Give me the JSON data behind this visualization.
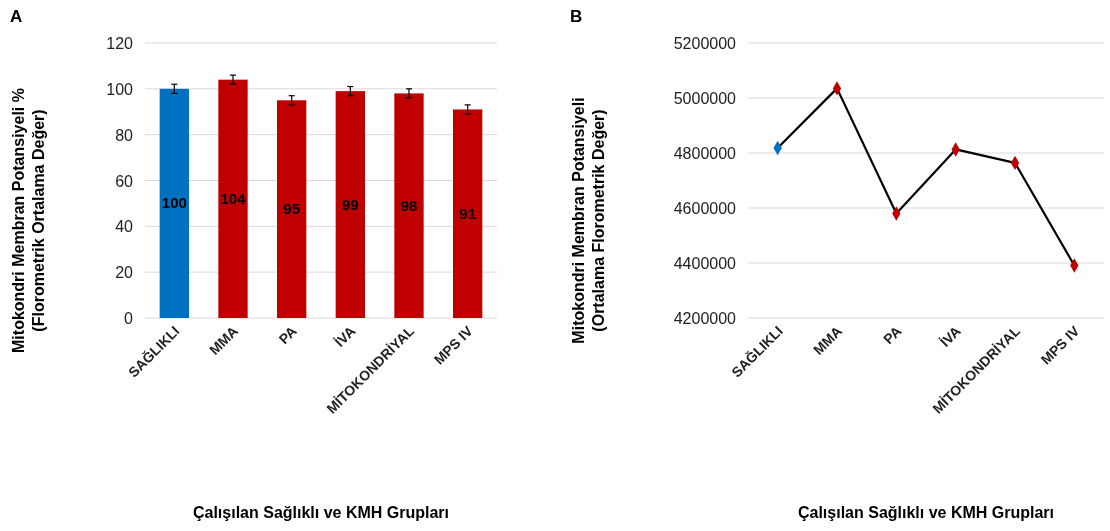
{
  "chart_data": [
    {
      "type": "bar",
      "title": "A",
      "xlabel": "Çalışılan Sağlıklı ve KMH Grupları",
      "ylabel": "Mitokondri Membran Potansiyeli %",
      "y2label": "(Florometrik Ortalama Değer)",
      "categories": [
        "SAĞLIKLI",
        "MMA",
        "PA",
        "İVA",
        "MİTOKONDRİYAL",
        "MPS IV"
      ],
      "values": [
        100,
        104,
        95,
        99,
        98,
        91
      ],
      "colors": [
        "#0070c0",
        "#c00000",
        "#c00000",
        "#c00000",
        "#c00000",
        "#c00000"
      ],
      "errors": [
        2,
        2,
        2,
        2,
        2,
        2
      ],
      "data_labels": true,
      "ylim": [
        0,
        120
      ],
      "yticks": [
        0,
        20,
        40,
        60,
        80,
        100,
        120
      ],
      "grid": "y"
    },
    {
      "type": "line",
      "title": "B",
      "xlabel": "Çalışılan Sağlıklı ve KMH Grupları",
      "ylabel": "Mitokondri Membran Potansiyeli",
      "y2label": "(Ortalama Florometrik Değer)",
      "categories": [
        "SAĞLIKLI",
        "MMA",
        "PA",
        "İVA",
        "MİTOKONDRİYAL",
        "MPS IV"
      ],
      "series": [
        {
          "color": "#000000",
          "colors": [
            "#0070c0",
            "#c00000",
            "#c00000",
            "#c00000",
            "#c00000",
            "#c00000"
          ],
          "values": [
            4818000,
            5035000,
            4580000,
            4813000,
            4764000,
            4391000
          ]
        }
      ],
      "marker": "diamond",
      "ylim": [
        4200000,
        5200000
      ],
      "yticks": [
        4200000,
        4400000,
        4600000,
        4800000,
        5000000,
        5200000
      ],
      "grid": "y"
    }
  ]
}
